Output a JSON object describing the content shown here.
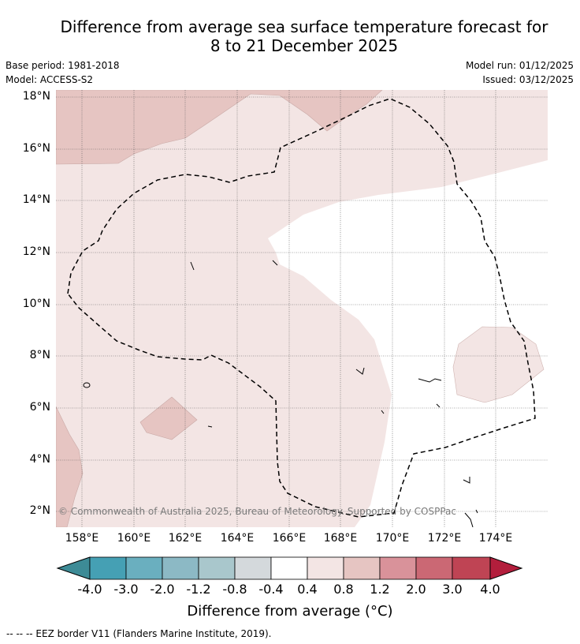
{
  "title": {
    "line1": "Difference from average sea surface temperature forecast for",
    "line2": "8 to 21 December 2025"
  },
  "meta": {
    "base_period": "Base period: 1981-2018",
    "model": "Model: ACCESS-S2",
    "model_run": "Model run: 01/12/2025",
    "issued": "Issued: 03/12/2025"
  },
  "map": {
    "lat_labels": [
      "18°N",
      "16°N",
      "14°N",
      "12°N",
      "10°N",
      "8°N",
      "6°N",
      "4°N",
      "2°N"
    ],
    "lon_labels": [
      "158°E",
      "160°E",
      "162°E",
      "164°E",
      "166°E",
      "168°E",
      "170°E",
      "172°E",
      "174°E"
    ],
    "copyright": "© Commonwealth of Australia 2025, Bureau of Meteorology. Supported by COSPPac",
    "eez_note": "--  --  -- EEZ border V11 (Flanders Marine Institute, 2019)."
  },
  "colorbar": {
    "title": "Difference from average (°C)",
    "labels": [
      "-4.0",
      "-3.0",
      "-2.0",
      "-1.2",
      "-0.8",
      "-0.4",
      "0.4",
      "0.8",
      "1.2",
      "2.0",
      "3.0",
      "4.0"
    ],
    "colors": [
      "#45a0b4",
      "#6aafbf",
      "#8cb9c5",
      "#a9c7cc",
      "#d4d9dc",
      "#ffffff",
      "#f3e5e4",
      "#e6c5c2",
      "#d9929a",
      "#cb6874",
      "#bf4454"
    ],
    "under_color": "#3d8b96",
    "over_color": "#b31e3c"
  },
  "palette": {
    "anomaly_0_4_to_0_8": "#f3e5e4",
    "anomaly_0_8_to_1_2": "#e6c5c2",
    "background": "#ffffff"
  }
}
